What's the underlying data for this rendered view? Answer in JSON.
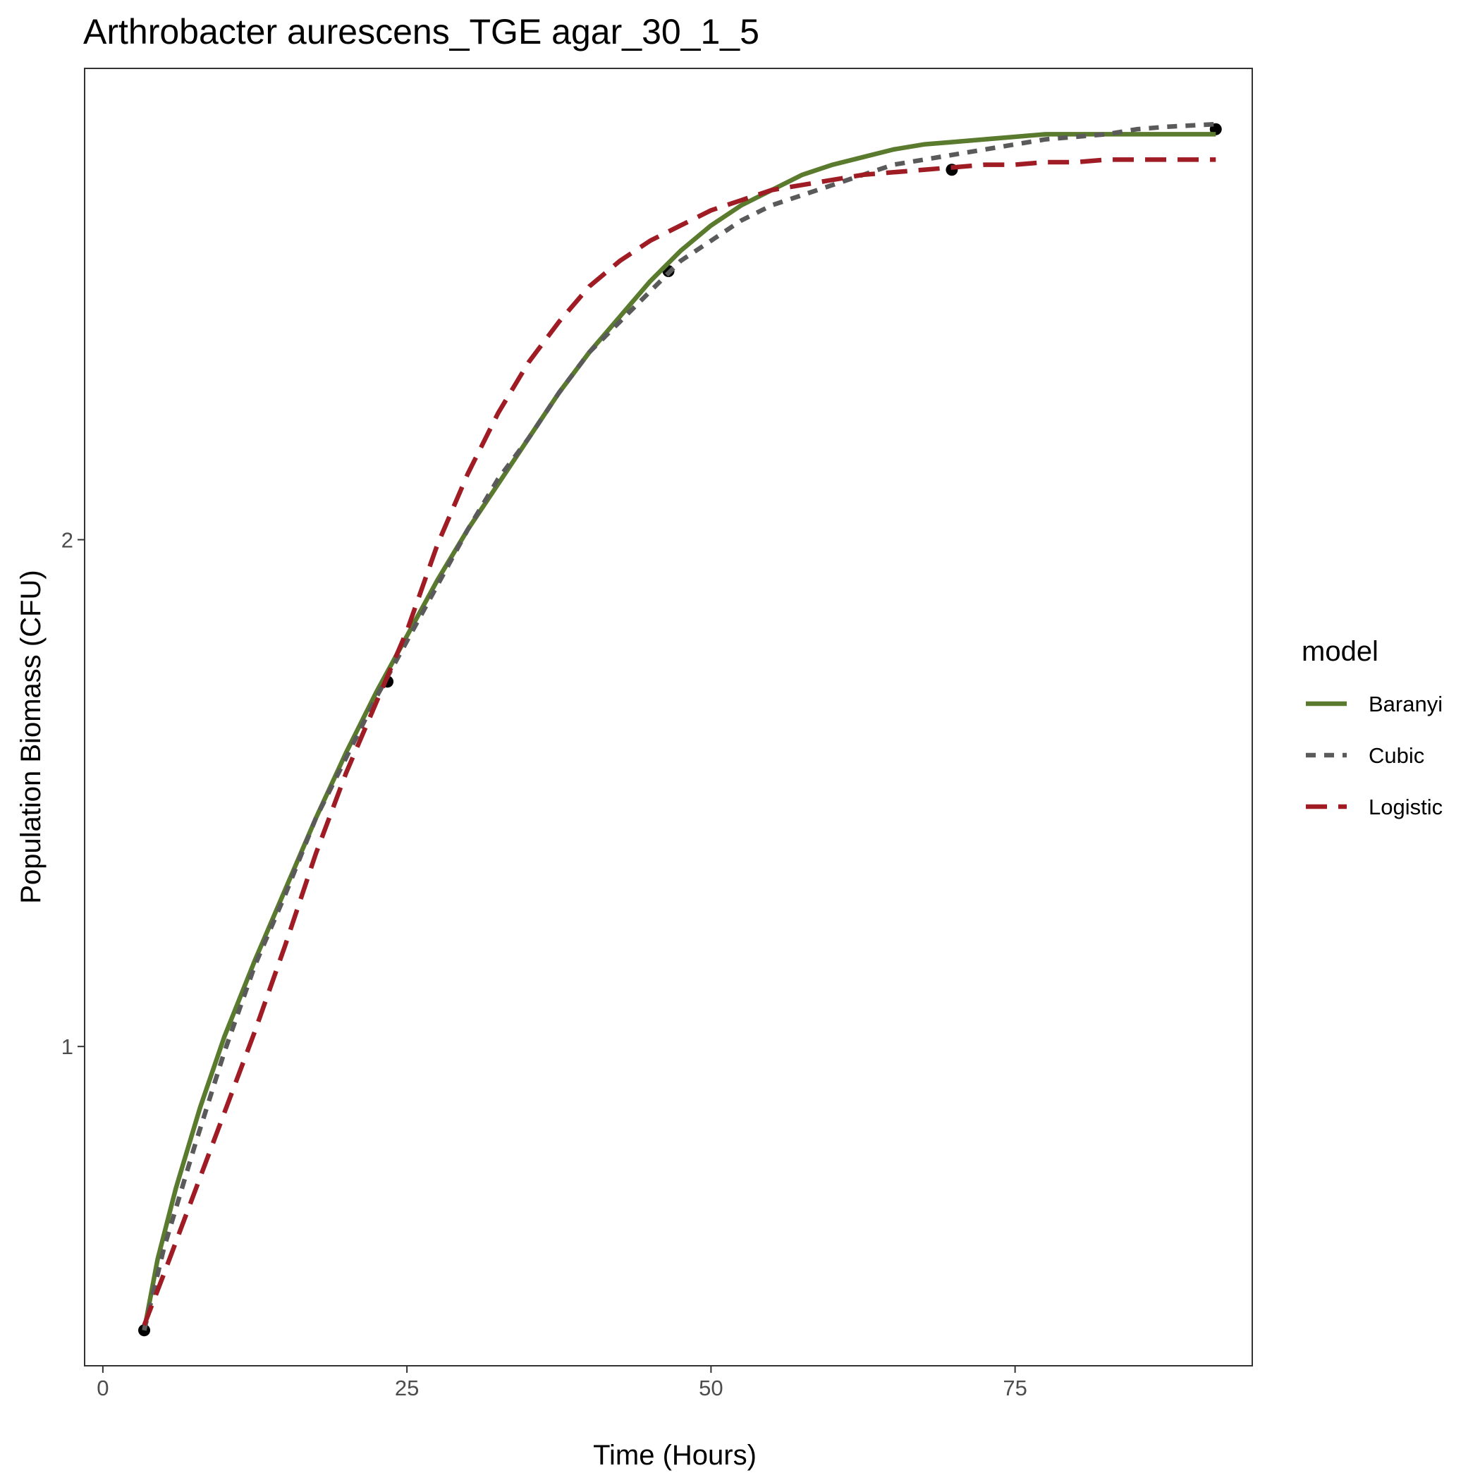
{
  "chart_data": {
    "type": "line",
    "title": "Arthrobacter aurescens_TGE agar_30_1_5",
    "xlabel": "Time (Hours)",
    "ylabel": "Population Biomass (CFU)",
    "xlim": [
      -1.5,
      94.5
    ],
    "ylim": [
      0.37,
      2.93
    ],
    "xticks": [
      0,
      25,
      50,
      75
    ],
    "xtick_labels": [
      "0",
      "25",
      "50",
      "75"
    ],
    "yticks": [
      1,
      2
    ],
    "ytick_labels": [
      "1",
      "2"
    ],
    "grid": false,
    "legend": {
      "title": "model",
      "placement": "right"
    },
    "points": {
      "x": [
        3.4,
        23.4,
        46.5,
        69.8,
        91.5
      ],
      "y": [
        0.44,
        1.72,
        2.53,
        2.73,
        2.81
      ]
    },
    "series": [
      {
        "name": "Baranyi",
        "color": "#5a7a2e",
        "dash": "solid",
        "x": [
          3.4,
          4.5,
          6,
          8,
          10,
          12.5,
          15,
          17.5,
          20,
          22.5,
          25,
          27.5,
          30,
          32.5,
          35,
          37.5,
          40,
          42.5,
          45,
          47.5,
          50,
          52.5,
          55,
          57.5,
          60,
          62.5,
          65,
          67.5,
          70,
          72.5,
          75,
          77.5,
          80,
          82.5,
          85,
          87.5,
          91.5
        ],
        "y": [
          0.44,
          0.58,
          0.72,
          0.88,
          1.02,
          1.17,
          1.31,
          1.45,
          1.58,
          1.7,
          1.81,
          1.92,
          2.02,
          2.11,
          2.2,
          2.29,
          2.37,
          2.44,
          2.51,
          2.57,
          2.62,
          2.66,
          2.69,
          2.72,
          2.74,
          2.755,
          2.77,
          2.78,
          2.785,
          2.79,
          2.795,
          2.8,
          2.8,
          2.8,
          2.8,
          2.8,
          2.8
        ]
      },
      {
        "name": "Cubic",
        "color": "#5a5a5a",
        "dash": "dotted",
        "x": [
          3.4,
          5,
          7.5,
          10,
          12.5,
          15,
          17.5,
          20,
          22.5,
          25,
          27.5,
          30,
          32.5,
          35,
          37.5,
          40,
          42.5,
          45,
          47.5,
          50,
          52.5,
          55,
          57.5,
          60,
          62.5,
          65,
          67.5,
          70,
          72.5,
          75,
          77.5,
          80,
          82.5,
          85,
          87.5,
          91.5
        ],
        "y": [
          0.44,
          0.6,
          0.8,
          0.99,
          1.16,
          1.3,
          1.45,
          1.57,
          1.69,
          1.8,
          1.91,
          2.02,
          2.12,
          2.2,
          2.29,
          2.37,
          2.43,
          2.49,
          2.55,
          2.59,
          2.63,
          2.66,
          2.68,
          2.7,
          2.72,
          2.74,
          2.75,
          2.76,
          2.77,
          2.78,
          2.79,
          2.795,
          2.8,
          2.81,
          2.815,
          2.82
        ]
      },
      {
        "name": "Logistic",
        "color": "#a01c24",
        "dash": "dashed",
        "x": [
          3.4,
          5,
          7.5,
          10,
          12.5,
          15,
          17.5,
          20,
          22.5,
          25,
          27.5,
          30,
          32.5,
          35,
          37.5,
          40,
          42.5,
          45,
          47.5,
          50,
          52.5,
          55,
          57.5,
          60,
          62.5,
          65,
          67.5,
          70,
          72.5,
          75,
          77.5,
          80,
          82.5,
          85,
          87.5,
          91.5
        ],
        "y": [
          0.45,
          0.55,
          0.71,
          0.87,
          1.03,
          1.2,
          1.38,
          1.54,
          1.68,
          1.82,
          1.99,
          2.13,
          2.25,
          2.35,
          2.43,
          2.5,
          2.55,
          2.59,
          2.62,
          2.65,
          2.67,
          2.69,
          2.7,
          2.71,
          2.72,
          2.725,
          2.73,
          2.735,
          2.74,
          2.74,
          2.745,
          2.745,
          2.75,
          2.75,
          2.75,
          2.75
        ]
      }
    ]
  }
}
